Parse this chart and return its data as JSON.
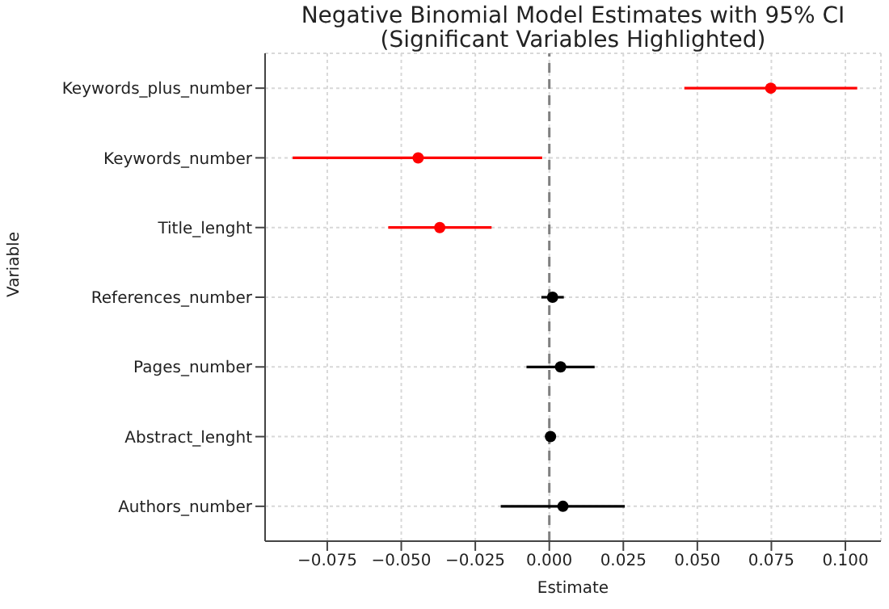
{
  "chart_data": {
    "type": "scatter",
    "orientation": "horizontal",
    "title": "Negative Binomial Model Estimates with 95% CI",
    "subtitle": "(Significant Variables Highlighted)",
    "xlabel": "Estimate",
    "ylabel": "Variable",
    "categories": [
      "Keywords_plus_number",
      "Keywords_number",
      "Title_lenght",
      "References_number",
      "Pages_number",
      "Abstract_lenght",
      "Authors_number"
    ],
    "values": [
      0.0748,
      -0.0443,
      -0.037,
      0.0011,
      0.0038,
      0.0004,
      0.0046
    ],
    "errors": [
      [
        0.0456,
        0.104
      ],
      [
        -0.0867,
        -0.0024
      ],
      [
        -0.0544,
        -0.0195
      ],
      [
        -0.0027,
        0.0049
      ],
      [
        -0.0077,
        0.0153
      ],
      null,
      [
        -0.0164,
        0.0255
      ]
    ],
    "colors": [
      "#ff0000",
      "#ff0000",
      "#ff0000",
      "#000000",
      "#000000",
      "#000000",
      "#000000"
    ],
    "xlim": [
      -0.096,
      0.112
    ],
    "xticks": [
      {
        "value": -0.075,
        "label": "−0.075"
      },
      {
        "value": -0.05,
        "label": "−0.050"
      },
      {
        "value": -0.025,
        "label": "−0.025"
      },
      {
        "value": 0,
        "label": "0.000"
      },
      {
        "value": 0.025,
        "label": "0.025"
      },
      {
        "value": 0.05,
        "label": "0.050"
      },
      {
        "value": 0.075,
        "label": "0.075"
      },
      {
        "value": 0.1,
        "label": "0.100"
      }
    ],
    "ref_lines": [
      {
        "axis": "x",
        "value": 0,
        "color": "#808080",
        "line_style": "dashed"
      }
    ],
    "grid": true,
    "marker": "circle",
    "legend": false
  }
}
